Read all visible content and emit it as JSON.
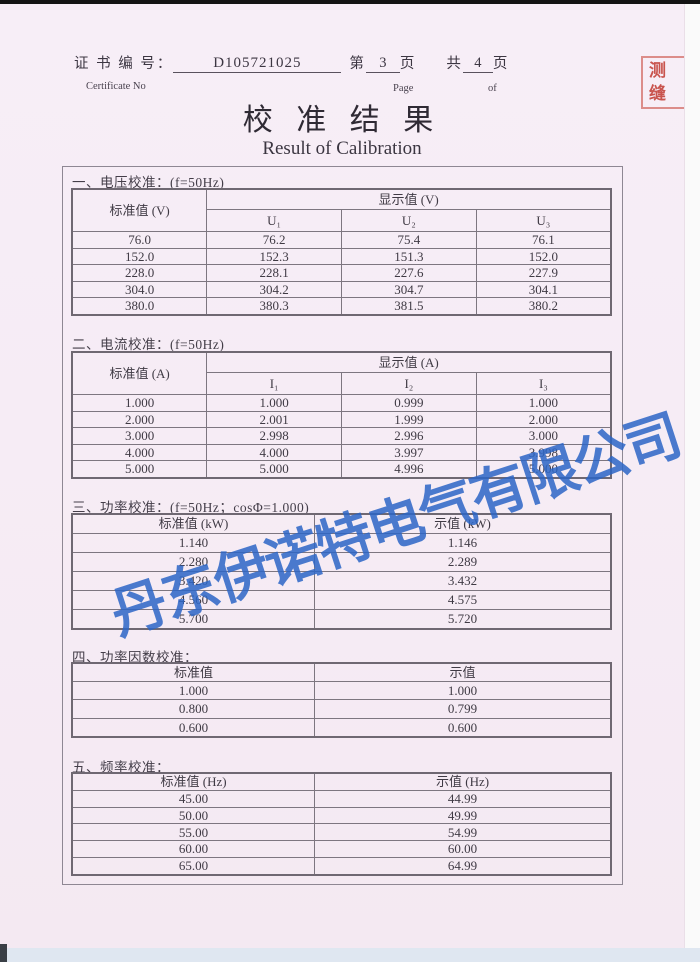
{
  "header": {
    "certificate_label_cn": "证 书 编 号：",
    "certificate_label_en": "Certificate No",
    "certificate_no": "D105721025",
    "page_prefix_cn": "第",
    "page_number": "3",
    "page_suffix_cn": "页",
    "page_label_en": "Page",
    "total_prefix_cn": "共",
    "total_pages": "4",
    "total_suffix_cn": "页",
    "total_label_en": "of"
  },
  "title": {
    "cn": "校 准 结 果",
    "en": "Result of Calibration"
  },
  "watermark_text": "丹东伊诺特电气有限公司",
  "seam_stamp": {
    "row1": "测",
    "row2": "缝"
  },
  "colors": {
    "paper": "#f6ecf5",
    "watermark_blue": "#2c65c5",
    "stamp_red": "#c5392f",
    "table_border": "#6f6872"
  },
  "sections": [
    {
      "heading": "一、电压校准：(f=50Hz)",
      "table": {
        "stub_header": "标准值 (V)",
        "group_header": "显示值 (V)",
        "sub_headers": [
          "U₁",
          "U₂",
          "U₃"
        ],
        "rows": [
          [
            "76.0",
            "76.2",
            "75.4",
            "76.1"
          ],
          [
            "152.0",
            "152.3",
            "151.3",
            "152.0"
          ],
          [
            "228.0",
            "228.1",
            "227.6",
            "227.9"
          ],
          [
            "304.0",
            "304.2",
            "304.7",
            "304.1"
          ],
          [
            "380.0",
            "380.3",
            "381.5",
            "380.2"
          ]
        ]
      }
    },
    {
      "heading": "二、电流校准：(f=50Hz)",
      "table": {
        "stub_header": "标准值 (A)",
        "group_header": "显示值 (A)",
        "sub_headers": [
          "I₁",
          "I₂",
          "I₃"
        ],
        "rows": [
          [
            "1.000",
            "1.000",
            "0.999",
            "1.000"
          ],
          [
            "2.000",
            "2.001",
            "1.999",
            "2.000"
          ],
          [
            "3.000",
            "2.998",
            "2.996",
            "3.000"
          ],
          [
            "4.000",
            "4.000",
            "3.997",
            "3.998"
          ],
          [
            "5.000",
            "5.000",
            "4.996",
            "5.000"
          ]
        ]
      }
    },
    {
      "heading": "三、功率校准：(f=50Hz；cosΦ=1.000)",
      "table": {
        "headers": [
          "标准值 (kW)",
          "示值 (kW)"
        ],
        "rows": [
          [
            "1.140",
            "1.146"
          ],
          [
            "2.280",
            "2.289"
          ],
          [
            "3.420",
            "3.432"
          ],
          [
            "4.560",
            "4.575"
          ],
          [
            "5.700",
            "5.720"
          ]
        ]
      }
    },
    {
      "heading": "四、功率因数校准：",
      "table": {
        "headers": [
          "标准值",
          "示值"
        ],
        "rows": [
          [
            "1.000",
            "1.000"
          ],
          [
            "0.800",
            "0.799"
          ],
          [
            "0.600",
            "0.600"
          ]
        ]
      }
    },
    {
      "heading": "五、频率校准：",
      "table": {
        "headers": [
          "标准值 (Hz)",
          "示值 (Hz)"
        ],
        "rows": [
          [
            "45.00",
            "44.99"
          ],
          [
            "50.00",
            "49.99"
          ],
          [
            "55.00",
            "54.99"
          ],
          [
            "60.00",
            "60.00"
          ],
          [
            "65.00",
            "64.99"
          ]
        ]
      }
    }
  ]
}
